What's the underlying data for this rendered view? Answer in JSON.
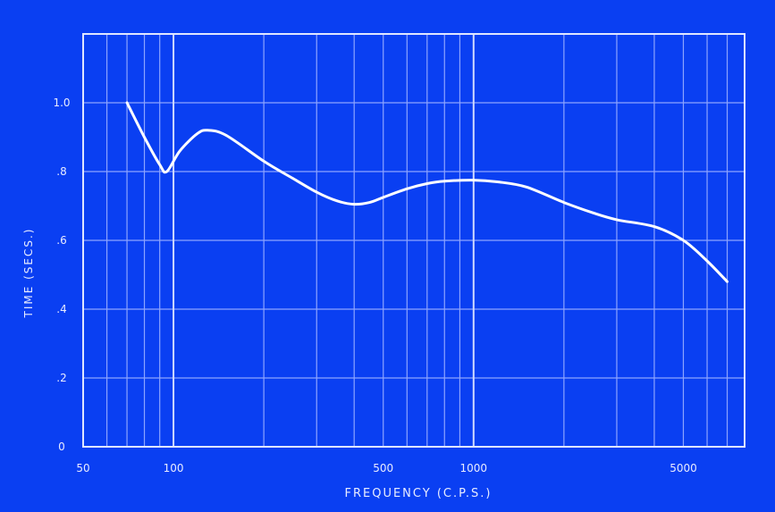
{
  "chart_data": {
    "type": "line",
    "title": "",
    "xlabel": "FREQUENCY   (C.P.S.)",
    "ylabel": "TIME   (SECS.)",
    "x_scale": "log",
    "xlim": [
      50,
      8000
    ],
    "ylim": [
      0,
      1.2
    ],
    "x_ticks": [
      {
        "value": 50,
        "label": "50"
      },
      {
        "value": 100,
        "label": "100"
      },
      {
        "value": 500,
        "label": "500"
      },
      {
        "value": 1000,
        "label": "1000"
      },
      {
        "value": 5000,
        "label": "5000"
      }
    ],
    "y_ticks": [
      {
        "value": 0,
        "label": "0"
      },
      {
        "value": 0.2,
        "label": ".2"
      },
      {
        "value": 0.4,
        "label": ".4"
      },
      {
        "value": 0.6,
        "label": ".6"
      },
      {
        "value": 0.8,
        "label": ".8"
      },
      {
        "value": 1.0,
        "label": "1.0"
      }
    ],
    "grid": true,
    "series": [
      {
        "x": [
          70,
          80,
          90,
          95,
          105,
          120,
          130,
          150,
          200,
          250,
          300,
          350,
          400,
          450,
          500,
          600,
          700,
          800,
          1000,
          1200,
          1500,
          2000,
          2500,
          3000,
          4000,
          5000,
          6000,
          7000
        ],
        "y": [
          1.0,
          0.9,
          0.82,
          0.8,
          0.86,
          0.91,
          0.92,
          0.905,
          0.83,
          0.78,
          0.74,
          0.715,
          0.705,
          0.71,
          0.725,
          0.75,
          0.765,
          0.772,
          0.775,
          0.77,
          0.755,
          0.71,
          0.68,
          0.66,
          0.64,
          0.6,
          0.54,
          0.48
        ]
      }
    ]
  },
  "colors": {
    "background": "#0a3ff2",
    "gridline": "#8da4ff",
    "frame": "#dfe6ff",
    "curve": "#ffffff",
    "text": "#e8ecff"
  }
}
